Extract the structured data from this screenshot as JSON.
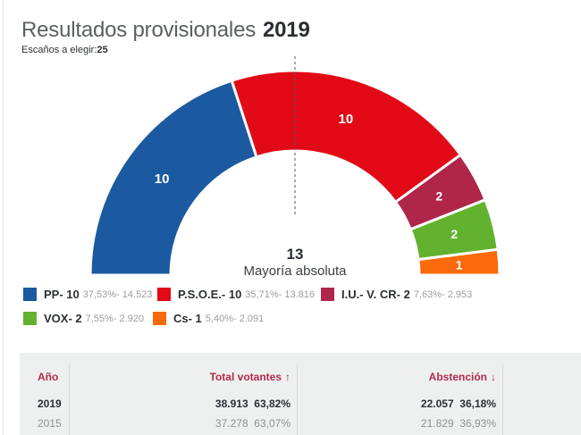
{
  "header": {
    "title": "Resultados provisionales",
    "year": "2019",
    "subtitle_label": "Escaños a elegir:",
    "subtitle_value": "25"
  },
  "chart_data": {
    "type": "pie",
    "variant": "parliament-semicircle",
    "title": "Resultados provisionales 2019",
    "total_seats": 25,
    "majority": {
      "value": "13",
      "label": "Mayoría absoluta"
    },
    "series": [
      {
        "name": "PP",
        "seats": 10,
        "percent": "37,53%",
        "votes": "14.523",
        "color": "#1b5aa0"
      },
      {
        "name": "P.S.O.E.",
        "seats": 10,
        "percent": "35,71%",
        "votes": "13.816",
        "color": "#e20a17"
      },
      {
        "name": "I.U.- V. CR",
        "seats": 2,
        "percent": "7,63%",
        "votes": "2.953",
        "color": "#b0264b"
      },
      {
        "name": "VOX",
        "seats": 2,
        "percent": "7,55%",
        "votes": "2.920",
        "color": "#63b22f"
      },
      {
        "name": "Cs",
        "seats": 1,
        "percent": "5,40%",
        "votes": "2.091",
        "color": "#fa6a0a"
      }
    ],
    "legend_position": "bottom"
  },
  "legend": [
    {
      "name": "PP- 10",
      "stats": "37,53%- 14.523"
    },
    {
      "name": "P.S.O.E.- 10",
      "stats": "35,71%- 13.816"
    },
    {
      "name": "I.U.- V. CR- 2",
      "stats": "7,63%- 2.953"
    },
    {
      "name": "VOX- 2",
      "stats": "7,55%- 2.920"
    },
    {
      "name": "Cs- 1",
      "stats": "5,40%- 2.091"
    }
  ],
  "table": {
    "headers": {
      "year": "Año",
      "voters": "Total votantes",
      "voters_arrow": "↑",
      "abstention": "Abstención",
      "abstention_arrow": "↓"
    },
    "rows": [
      {
        "year": "2019",
        "voters": "38.913",
        "voters_pct": "63,82%",
        "abstention": "22.057",
        "abstention_pct": "36,18%"
      },
      {
        "year": "2015",
        "voters": "37.278",
        "voters_pct": "63,07%",
        "abstention": "21.829",
        "abstention_pct": "36,93%"
      }
    ]
  },
  "colors": {
    "accent": "#b22a4a",
    "table_bg": "#eef0f0"
  }
}
